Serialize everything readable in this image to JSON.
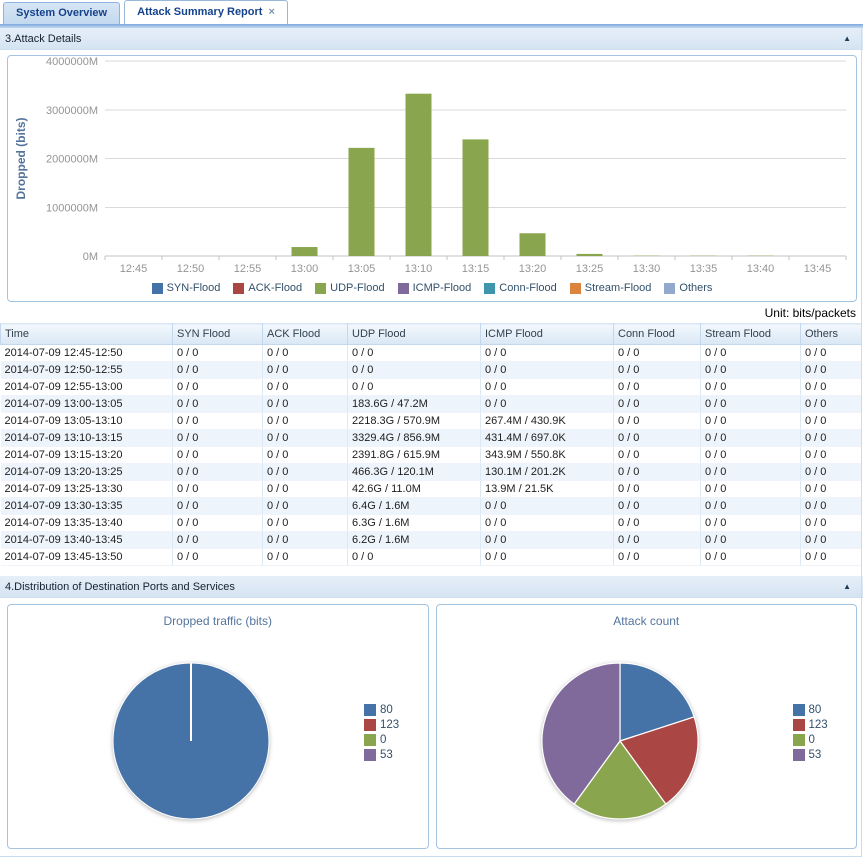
{
  "tabs": {
    "items": [
      {
        "label": "System Overview",
        "active": false
      },
      {
        "label": "Attack Summary Report",
        "active": true,
        "close_icon": "×"
      }
    ]
  },
  "section3": {
    "title": "3.Attack Details",
    "collapse_icon": "▲"
  },
  "section4": {
    "title": "4.Distribution of Destination Ports and Services",
    "collapse_icon": "▲"
  },
  "unit_note": "Unit: bits/packets",
  "attack_table": {
    "columns": [
      "Time",
      "SYN Flood",
      "ACK Flood",
      "UDP Flood",
      "ICMP Flood",
      "Conn Flood",
      "Stream Flood",
      "Others"
    ],
    "rows": [
      [
        "2014-07-09 12:45-12:50",
        "0 / 0",
        "0 / 0",
        "0 / 0",
        "0 / 0",
        "0 / 0",
        "0 / 0",
        "0 / 0"
      ],
      [
        "2014-07-09 12:50-12:55",
        "0 / 0",
        "0 / 0",
        "0 / 0",
        "0 / 0",
        "0 / 0",
        "0 / 0",
        "0 / 0"
      ],
      [
        "2014-07-09 12:55-13:00",
        "0 / 0",
        "0 / 0",
        "0 / 0",
        "0 / 0",
        "0 / 0",
        "0 / 0",
        "0 / 0"
      ],
      [
        "2014-07-09 13:00-13:05",
        "0 / 0",
        "0 / 0",
        "183.6G / 47.2M",
        "0 / 0",
        "0 / 0",
        "0 / 0",
        "0 / 0"
      ],
      [
        "2014-07-09 13:05-13:10",
        "0 / 0",
        "0 / 0",
        "2218.3G / 570.9M",
        "267.4M / 430.9K",
        "0 / 0",
        "0 / 0",
        "0 / 0"
      ],
      [
        "2014-07-09 13:10-13:15",
        "0 / 0",
        "0 / 0",
        "3329.4G / 856.9M",
        "431.4M / 697.0K",
        "0 / 0",
        "0 / 0",
        "0 / 0"
      ],
      [
        "2014-07-09 13:15-13:20",
        "0 / 0",
        "0 / 0",
        "2391.8G / 615.9M",
        "343.9M / 550.8K",
        "0 / 0",
        "0 / 0",
        "0 / 0"
      ],
      [
        "2014-07-09 13:20-13:25",
        "0 / 0",
        "0 / 0",
        "466.3G / 120.1M",
        "130.1M / 201.2K",
        "0 / 0",
        "0 / 0",
        "0 / 0"
      ],
      [
        "2014-07-09 13:25-13:30",
        "0 / 0",
        "0 / 0",
        "42.6G / 11.0M",
        "13.9M / 21.5K",
        "0 / 0",
        "0 / 0",
        "0 / 0"
      ],
      [
        "2014-07-09 13:30-13:35",
        "0 / 0",
        "0 / 0",
        "6.4G / 1.6M",
        "0 / 0",
        "0 / 0",
        "0 / 0",
        "0 / 0"
      ],
      [
        "2014-07-09 13:35-13:40",
        "0 / 0",
        "0 / 0",
        "6.3G / 1.6M",
        "0 / 0",
        "0 / 0",
        "0 / 0",
        "0 / 0"
      ],
      [
        "2014-07-09 13:40-13:45",
        "0 / 0",
        "0 / 0",
        "6.2G / 1.6M",
        "0 / 0",
        "0 / 0",
        "0 / 0",
        "0 / 0"
      ],
      [
        "2014-07-09 13:45-13:50",
        "0 / 0",
        "0 / 0",
        "0 / 0",
        "0 / 0",
        "0 / 0",
        "0 / 0",
        "0 / 0"
      ]
    ]
  },
  "chart_data": [
    {
      "type": "bar",
      "title": "",
      "ylabel": "Dropped (bits)",
      "xlabel": "",
      "categories": [
        "12:45",
        "12:50",
        "12:55",
        "13:00",
        "13:05",
        "13:10",
        "13:15",
        "13:20",
        "13:25",
        "13:30",
        "13:35",
        "13:40",
        "13:45"
      ],
      "ylim": [
        0,
        4000000
      ],
      "yticks": [
        "0M",
        "1000000M",
        "2000000M",
        "3000000M",
        "4000000M"
      ],
      "grid": true,
      "legend_position": "bottom",
      "value_unit": "Mbits",
      "series": [
        {
          "name": "SYN-Flood",
          "color": "#4572A7",
          "values": [
            0,
            0,
            0,
            0,
            0,
            0,
            0,
            0,
            0,
            0,
            0,
            0,
            0
          ]
        },
        {
          "name": "ACK-Flood",
          "color": "#AA4643",
          "values": [
            0,
            0,
            0,
            0,
            0,
            0,
            0,
            0,
            0,
            0,
            0,
            0,
            0
          ]
        },
        {
          "name": "UDP-Flood",
          "color": "#89A54E",
          "values": [
            0,
            0,
            0,
            183600,
            2218300,
            3329400,
            2391800,
            466300,
            42600,
            6400,
            6300,
            6200,
            0
          ]
        },
        {
          "name": "ICMP-Flood",
          "color": "#80699B",
          "values": [
            0,
            0,
            0,
            0,
            267,
            431,
            344,
            130,
            14,
            0,
            0,
            0,
            0
          ]
        },
        {
          "name": "Conn-Flood",
          "color": "#3D96AE",
          "values": [
            0,
            0,
            0,
            0,
            0,
            0,
            0,
            0,
            0,
            0,
            0,
            0,
            0
          ]
        },
        {
          "name": "Stream-Flood",
          "color": "#DB843D",
          "values": [
            0,
            0,
            0,
            0,
            0,
            0,
            0,
            0,
            0,
            0,
            0,
            0,
            0
          ]
        },
        {
          "name": "Others",
          "color": "#92A8CD",
          "values": [
            0,
            0,
            0,
            0,
            0,
            0,
            0,
            0,
            0,
            0,
            0,
            0,
            0
          ]
        }
      ]
    },
    {
      "type": "pie",
      "title": "Dropped traffic (bits)",
      "labels": [
        "80",
        "123",
        "0",
        "53"
      ],
      "colors": [
        "#4572A7",
        "#AA4643",
        "#89A54E",
        "#80699B"
      ],
      "values_percent": [
        100,
        0,
        0,
        0
      ],
      "legend_position": "right"
    },
    {
      "type": "pie",
      "title": "Attack count",
      "labels": [
        "80",
        "123",
        "0",
        "53"
      ],
      "colors": [
        "#4572A7",
        "#AA4643",
        "#89A54E",
        "#80699B"
      ],
      "values_percent": [
        20,
        20,
        20,
        40
      ],
      "legend_position": "right"
    }
  ]
}
